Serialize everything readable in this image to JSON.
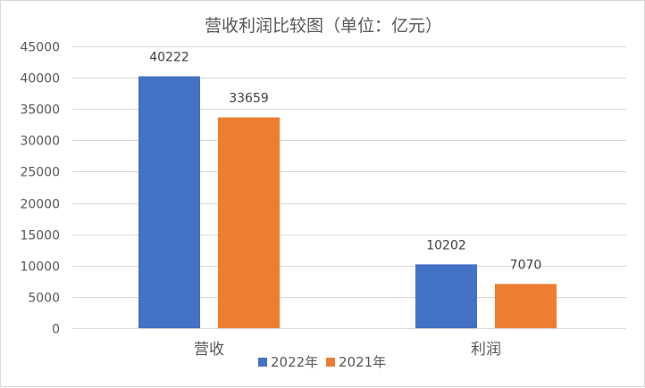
{
  "chart_data": {
    "type": "bar",
    "title": "营收利润比较图（单位：亿元）",
    "categories": [
      "营收",
      "利润"
    ],
    "series": [
      {
        "name": "2022年",
        "values": [
          40222,
          10202
        ],
        "color": "#4472C4"
      },
      {
        "name": "2021年",
        "values": [
          33659,
          7070
        ],
        "color": "#ED7D31"
      }
    ],
    "data_labels": [
      [
        "40222",
        "10202"
      ],
      [
        "33659",
        "7070"
      ]
    ],
    "ylim": [
      0,
      45000
    ],
    "y_ticks": [
      "0",
      "5000",
      "10000",
      "15000",
      "20000",
      "25000",
      "30000",
      "35000",
      "40000",
      "45000"
    ],
    "grid": true,
    "grid_color": "#d9d9d9",
    "legend_position": "bottom"
  }
}
